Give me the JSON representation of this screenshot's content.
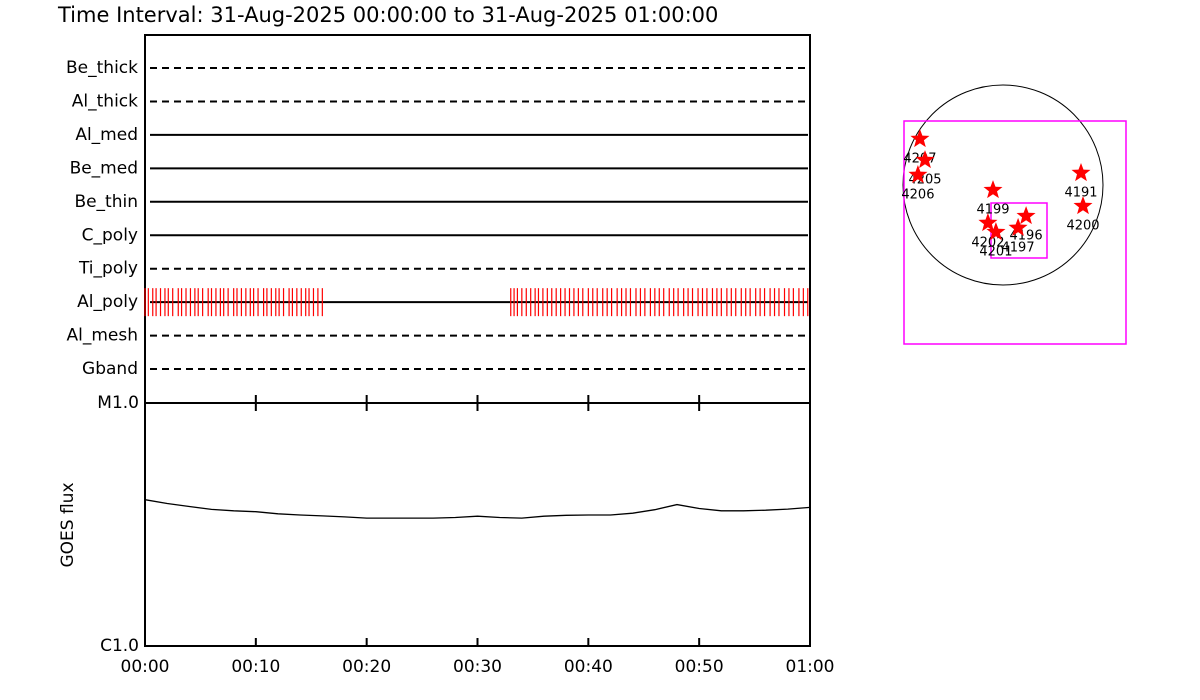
{
  "title": "Time Interval: 31-Aug-2025 00:00:00 to 31-Aug-2025 01:00:00",
  "chart_data": [
    {
      "type": "timeline",
      "categories": [
        "Be_thick",
        "Al_thick",
        "Al_med",
        "Be_med",
        "Be_thin",
        "C_poly",
        "Ti_poly",
        "Al_poly",
        "Al_mesh",
        "Gband"
      ],
      "line_styles": [
        "dashed",
        "dashed",
        "solid",
        "solid",
        "solid",
        "solid",
        "dashed",
        "solid",
        "dashed",
        "dashed"
      ],
      "color": "#ff0000",
      "xlim": [
        0,
        60
      ],
      "observations": [
        [],
        [],
        [],
        [],
        [],
        [],
        [],
        [
          0,
          0.3,
          0.7,
          1,
          1.4,
          1.8,
          2.1,
          2.5,
          3,
          3.3,
          3.7,
          4.1,
          4.5,
          4.8,
          5.2,
          5.7,
          6,
          6.4,
          6.8,
          7.1,
          7.5,
          8,
          8.3,
          8.7,
          9.1,
          9.5,
          9.8,
          10.2,
          10.7,
          11,
          11.4,
          11.8,
          12.1,
          12.5,
          13,
          13.3,
          13.7,
          14.1,
          14.5,
          14.8,
          15.2,
          15.6,
          16,
          33,
          33.3,
          33.6,
          34,
          34.4,
          34.8,
          35.2,
          35.5,
          35.9,
          36.3,
          36.7,
          37.1,
          37.5,
          37.9,
          38.3,
          38.7,
          39.1,
          39.5,
          40,
          40.4,
          40.8,
          41.3,
          41.7,
          42.1,
          42.6,
          43,
          43.4,
          43.8,
          44.3,
          44.7,
          45.1,
          45.6,
          46,
          46.4,
          46.8,
          47.3,
          47.7,
          48.1,
          48.6,
          49,
          49.4,
          49.9,
          50.3,
          50.7,
          51.2,
          51.6,
          52,
          52.5,
          52.9,
          53.3,
          53.8,
          54.2,
          54.6,
          55.1,
          55.5,
          55.9,
          56.4,
          56.8,
          57.2,
          57.7,
          58.1,
          58.5,
          59,
          59.4,
          59.8
        ],
        [],
        []
      ]
    },
    {
      "type": "line",
      "y_label": "GOES flux",
      "log_scale": true,
      "color": "#000000",
      "x": [
        0,
        2,
        4,
        6,
        8,
        10,
        12,
        14,
        16,
        18,
        20,
        22,
        24,
        26,
        28,
        30,
        32,
        34,
        36,
        38,
        40,
        42,
        44,
        46,
        48,
        50,
        52,
        54,
        56,
        58,
        60
      ],
      "values": [
        4e-06,
        3.86e-06,
        3.75e-06,
        3.65e-06,
        3.6e-06,
        3.57e-06,
        3.5e-06,
        3.46e-06,
        3.43e-06,
        3.4e-06,
        3.36e-06,
        3.36e-06,
        3.36e-06,
        3.36e-06,
        3.38e-06,
        3.42e-06,
        3.38e-06,
        3.36e-06,
        3.42e-06,
        3.45e-06,
        3.46e-06,
        3.46e-06,
        3.52e-06,
        3.64e-06,
        3.82e-06,
        3.68e-06,
        3.6e-06,
        3.6e-06,
        3.62e-06,
        3.66e-06,
        3.72e-06
      ],
      "xlim": [
        0,
        60
      ],
      "xticks": [
        {
          "value": 0,
          "label": "00:00"
        },
        {
          "value": 10,
          "label": "00:10"
        },
        {
          "value": 20,
          "label": "00:20"
        },
        {
          "value": 30,
          "label": "00:30"
        },
        {
          "value": 40,
          "label": "00:40"
        },
        {
          "value": 50,
          "label": "00:50"
        },
        {
          "value": 60,
          "label": "01:00"
        }
      ],
      "ylim": [
        1e-06,
        1e-05
      ],
      "yticks": [
        {
          "value": 1e-06,
          "label": "C1.0"
        },
        {
          "value": 1e-05,
          "label": "M1.0"
        }
      ]
    },
    {
      "type": "scatter",
      "color": "#ff0000",
      "x": [
        -789,
        -741,
        -808,
        -95,
        741,
        760,
        219,
        -143,
        -67,
        143
      ],
      "y": [
        437,
        237,
        95,
        -48,
        114,
        -200,
        -295,
        -361,
        -447,
        -408
      ],
      "labels": [
        "4207",
        "4205",
        "4206",
        "4199",
        "4191",
        "4200",
        "4196",
        "4202",
        "4201",
        "4197"
      ],
      "xlim": [
        -1140,
        1140
      ],
      "ylim": [
        -1140,
        1140
      ]
    }
  ]
}
